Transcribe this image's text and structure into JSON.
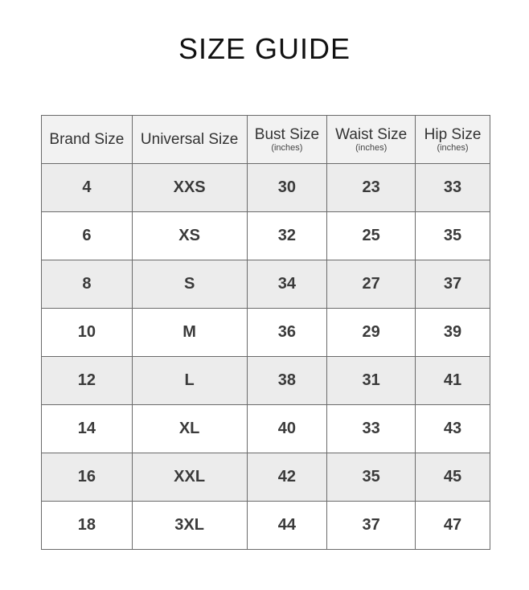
{
  "title": "SIZE GUIDE",
  "headers": [
    {
      "label": "Brand Size",
      "unit": ""
    },
    {
      "label": "Universal Size",
      "unit": ""
    },
    {
      "label": "Bust Size",
      "unit": "(inches)"
    },
    {
      "label": "Waist Size",
      "unit": "(inches)"
    },
    {
      "label": "Hip Size",
      "unit": "(inches)"
    }
  ],
  "rows": [
    [
      "4",
      "XXS",
      "30",
      "23",
      "33"
    ],
    [
      "6",
      "XS",
      "32",
      "25",
      "35"
    ],
    [
      "8",
      "S",
      "34",
      "27",
      "37"
    ],
    [
      "10",
      "M",
      "36",
      "29",
      "39"
    ],
    [
      "12",
      "L",
      "38",
      "31",
      "41"
    ],
    [
      "14",
      "XL",
      "40",
      "33",
      "43"
    ],
    [
      "16",
      "XXL",
      "42",
      "35",
      "45"
    ],
    [
      "18",
      "3XL",
      "44",
      "37",
      "47"
    ]
  ],
  "colors": {
    "header_bg": "#f2f2f2",
    "odd_row_bg": "#ececec",
    "even_row_bg": "#ffffff",
    "border": "#6a6a6a"
  }
}
